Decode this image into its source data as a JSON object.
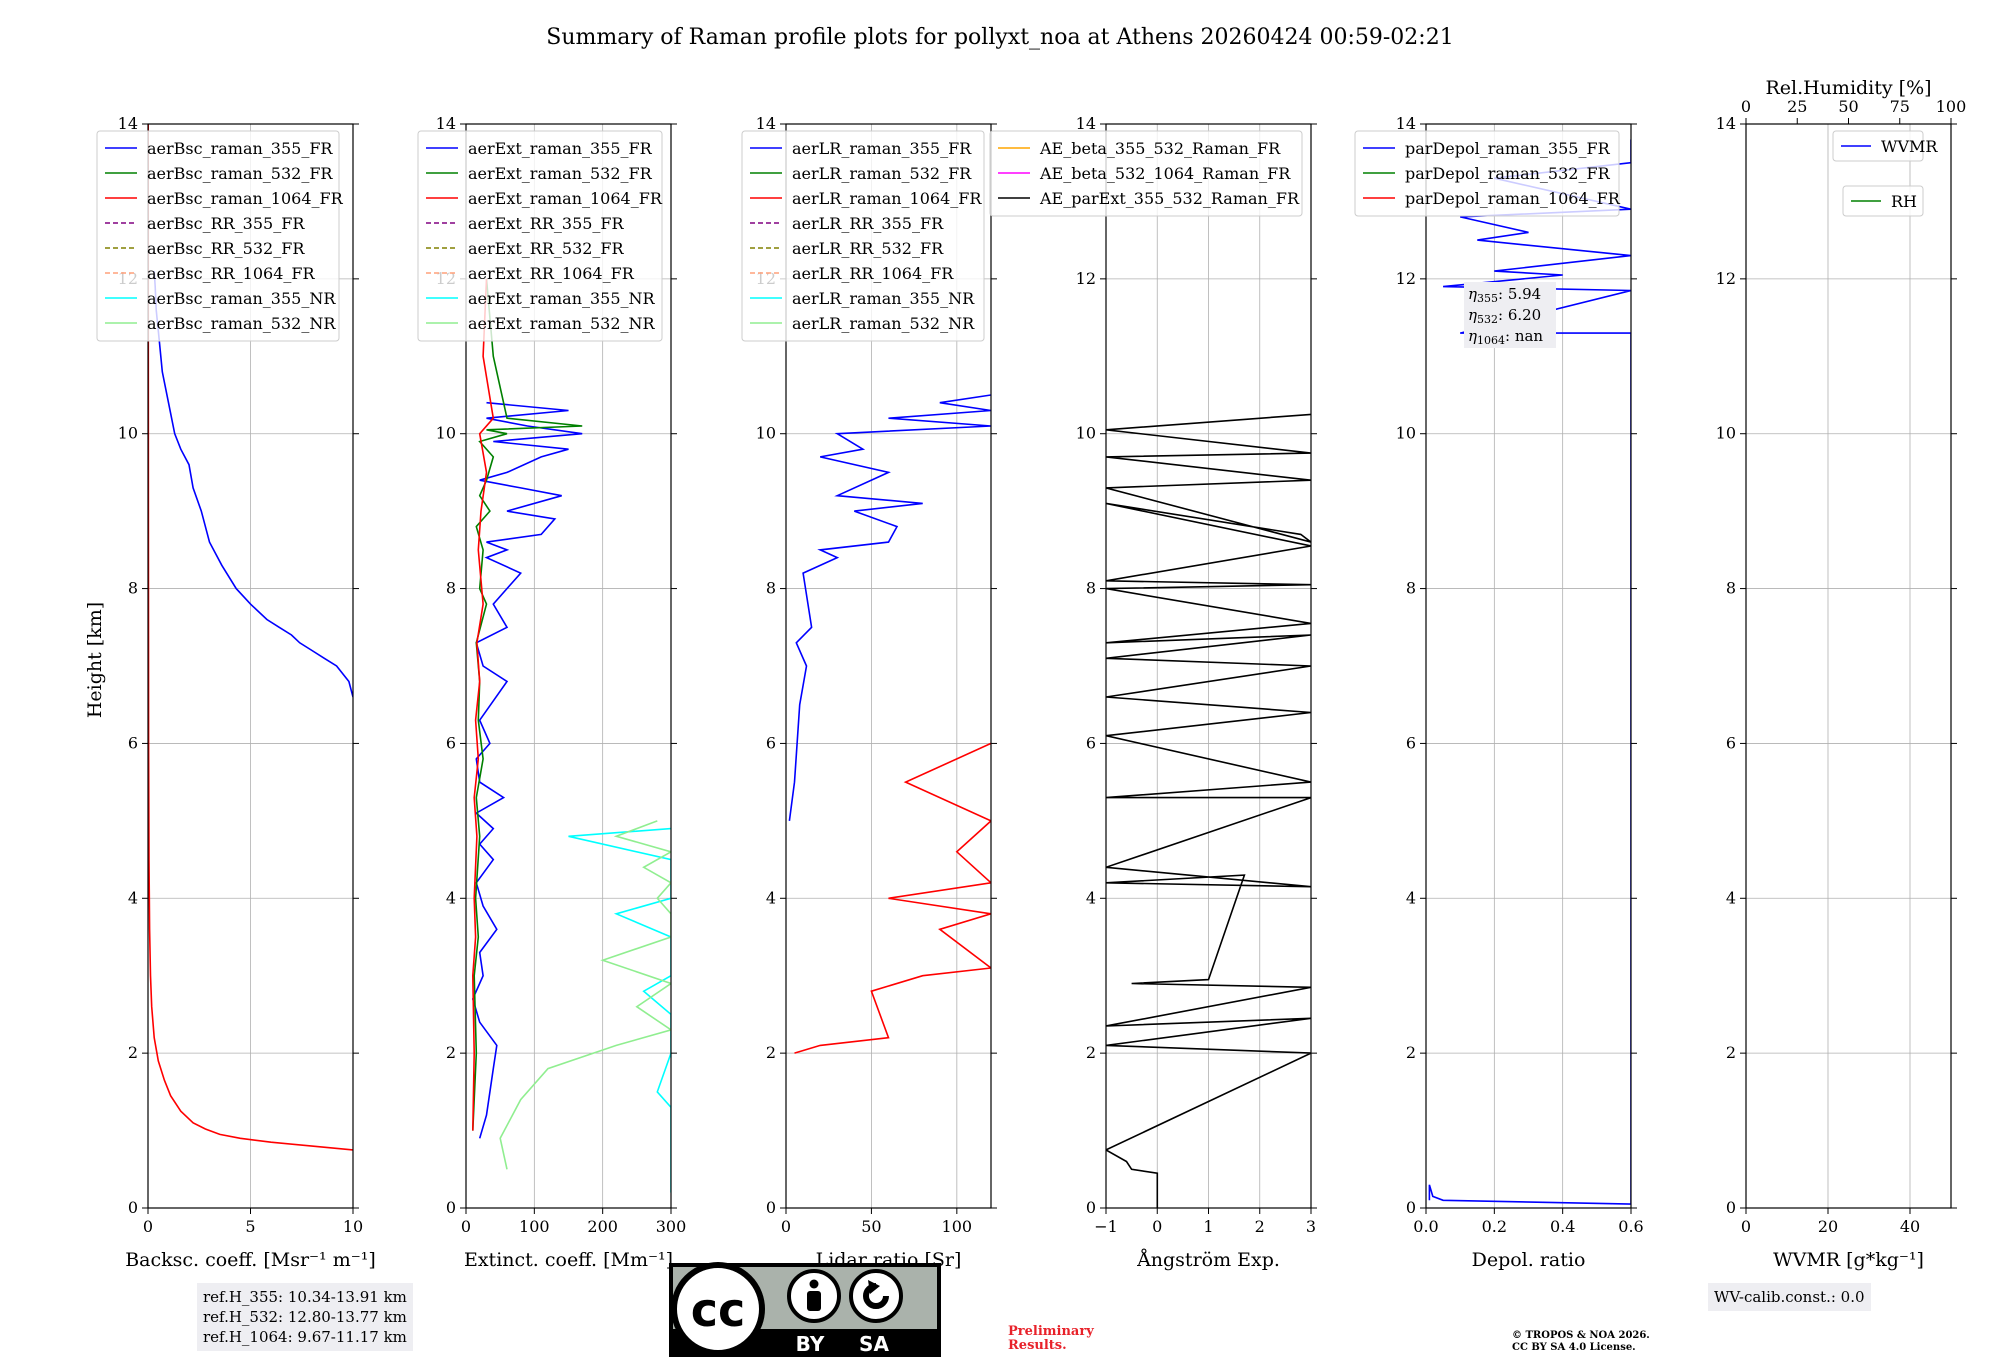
{
  "title": "Summary of Raman profile plots for pollyxt_noa at Athens 20260424 00:59-02:21",
  "ylabel": "Height [km]",
  "chart_data": [
    {
      "type": "line",
      "id": "bsc",
      "xlabel": "Backsc. coeff. [Msr⁻¹ m⁻¹]",
      "xlim": [
        0,
        10
      ],
      "ylim": [
        0,
        14
      ],
      "xticks": [
        "0",
        "5",
        "10"
      ],
      "legend": [
        "aerBsc_raman_355_FR",
        "aerBsc_raman_532_FR",
        "aerBsc_raman_1064_FR",
        "aerBsc_RR_355_FR",
        "aerBsc_RR_532_FR",
        "aerBsc_RR_1064_FR",
        "aerBsc_raman_355_NR",
        "aerBsc_raman_532_NR"
      ],
      "series": [
        {
          "name": "aerBsc_raman_355_FR",
          "x": [
            10,
            9.8,
            9.2,
            8.6,
            8.0,
            7.4,
            7.0,
            6.4,
            5.8,
            5.0,
            4.3,
            3.6,
            3.0,
            2.6,
            2.2,
            2.0,
            1.6,
            1.3,
            1.0,
            0.7,
            0.55,
            0.4,
            0.35,
            0.3
          ],
          "y": [
            6.6,
            6.8,
            7.0,
            7.1,
            7.2,
            7.3,
            7.4,
            7.5,
            7.6,
            7.8,
            8.0,
            8.3,
            8.6,
            9.0,
            9.3,
            9.6,
            9.8,
            10.0,
            10.4,
            10.8,
            11.2,
            11.6,
            11.9,
            12.1
          ]
        },
        {
          "name": "aerBsc_raman_1064_FR",
          "x": [
            10,
            8.0,
            6.0,
            4.5,
            3.5,
            2.8,
            2.2,
            1.6,
            1.1,
            0.8,
            0.5,
            0.3,
            0.18,
            0.12,
            0.08,
            0.05,
            0.03,
            0.02,
            0.01
          ],
          "y": [
            0.75,
            0.8,
            0.85,
            0.9,
            0.95,
            1.02,
            1.1,
            1.25,
            1.45,
            1.65,
            1.9,
            2.2,
            2.6,
            3.0,
            3.6,
            4.5,
            6.0,
            9.0,
            14.0
          ]
        }
      ]
    },
    {
      "type": "line",
      "id": "ext",
      "xlabel": "Extinct. coeff. [Mm⁻¹]",
      "xlim": [
        0,
        300
      ],
      "ylim": [
        0,
        14
      ],
      "xticks": [
        "0",
        "100",
        "200",
        "300"
      ],
      "legend": [
        "aerExt_raman_355_FR",
        "aerExt_raman_532_FR",
        "aerExt_raman_1064_FR",
        "aerExt_RR_355_FR",
        "aerExt_RR_532_FR",
        "aerExt_RR_1064_FR",
        "aerExt_raman_355_NR",
        "aerExt_raman_532_NR"
      ],
      "series": [
        {
          "name": "aerExt_raman_355_FR",
          "x": [
            20,
            30,
            35,
            40,
            45,
            20,
            10,
            25,
            20,
            45,
            25,
            15,
            40,
            20,
            40,
            15,
            55,
            20,
            15,
            35,
            20,
            60,
            25,
            15,
            60,
            40,
            80,
            30,
            60,
            30,
            110,
            130,
            60,
            140,
            80,
            20,
            60,
            110,
            150,
            40,
            170,
            90,
            30,
            150,
            30
          ],
          "y": [
            0.9,
            1.2,
            1.5,
            1.8,
            2.1,
            2.4,
            2.7,
            3.0,
            3.3,
            3.6,
            3.9,
            4.2,
            4.5,
            4.7,
            4.9,
            5.1,
            5.3,
            5.5,
            5.8,
            6.0,
            6.3,
            6.8,
            7.0,
            7.3,
            7.5,
            7.8,
            8.2,
            8.4,
            8.5,
            8.6,
            8.7,
            8.9,
            9.0,
            9.2,
            9.3,
            9.4,
            9.5,
            9.7,
            9.8,
            9.9,
            10.0,
            10.1,
            10.2,
            10.3,
            10.4
          ]
        },
        {
          "name": "aerExt_raman_532_FR",
          "x": [
            10,
            15,
            12,
            18,
            14,
            20,
            15,
            25,
            18,
            20,
            15,
            30,
            20,
            25,
            15,
            35,
            20,
            30,
            40,
            20,
            60,
            30,
            170,
            60,
            40,
            30
          ],
          "y": [
            1.0,
            2.0,
            3.0,
            3.5,
            4.0,
            4.8,
            5.3,
            5.8,
            6.3,
            6.8,
            7.3,
            7.8,
            8.0,
            8.5,
            8.8,
            9.0,
            9.2,
            9.4,
            9.7,
            9.9,
            10.0,
            10.05,
            10.1,
            10.2,
            11.0,
            12.0
          ]
        },
        {
          "name": "aerExt_raman_1064_FR",
          "x": [
            10,
            12,
            10,
            14,
            12,
            16,
            12,
            18,
            14,
            20,
            16,
            25,
            18,
            22,
            30,
            20,
            40,
            25,
            30
          ],
          "y": [
            1.0,
            2.0,
            3.0,
            3.5,
            4.0,
            4.8,
            5.3,
            5.8,
            6.3,
            6.8,
            7.3,
            7.8,
            8.5,
            9.0,
            9.5,
            10.0,
            10.2,
            11.0,
            12.0
          ]
        },
        {
          "name": "aerExt_raman_355_NR",
          "x": [
            300,
            300,
            280,
            300,
            300,
            260,
            300,
            300,
            220,
            300,
            300,
            150,
            300
          ],
          "y": [
            0.2,
            1.3,
            1.5,
            2.0,
            2.5,
            2.8,
            3.0,
            3.5,
            3.8,
            4.0,
            4.5,
            4.8,
            4.9
          ]
        },
        {
          "name": "aerExt_raman_532_NR",
          "x": [
            60,
            50,
            80,
            120,
            220,
            300,
            250,
            300,
            200,
            300,
            300,
            280,
            300,
            260,
            300,
            220,
            280
          ],
          "y": [
            0.5,
            0.9,
            1.4,
            1.8,
            2.1,
            2.3,
            2.6,
            2.9,
            3.2,
            3.5,
            3.8,
            4.0,
            4.2,
            4.4,
            4.6,
            4.8,
            5.0
          ]
        }
      ]
    },
    {
      "type": "line",
      "id": "lr",
      "xlabel": "Lidar ratio [Sr]",
      "xlim": [
        0,
        120
      ],
      "ylim": [
        0,
        14
      ],
      "xticks": [
        "0",
        "50",
        "100"
      ],
      "legend": [
        "aerLR_raman_355_FR",
        "aerLR_raman_532_FR",
        "aerLR_raman_1064_FR",
        "aerLR_RR_355_FR",
        "aerLR_RR_532_FR",
        "aerLR_RR_1064_FR",
        "aerLR_raman_355_NR",
        "aerLR_raman_532_NR"
      ],
      "series": [
        {
          "name": "aerLR_raman_355_FR",
          "x": [
            2,
            5,
            8,
            12,
            6,
            15,
            10,
            30,
            20,
            60,
            65,
            40,
            80,
            30,
            60,
            20,
            45,
            30,
            120,
            60,
            120,
            90,
            120
          ],
          "y": [
            5.0,
            5.5,
            6.5,
            7.0,
            7.3,
            7.5,
            8.2,
            8.4,
            8.5,
            8.6,
            8.8,
            9.0,
            9.1,
            9.2,
            9.5,
            9.7,
            9.8,
            10.0,
            10.1,
            10.2,
            10.3,
            10.4,
            10.5
          ]
        },
        {
          "name": "aerLR_raman_1064_FR",
          "x": [
            5,
            20,
            60,
            50,
            80,
            120,
            90,
            120,
            60,
            120,
            100,
            120,
            70,
            120
          ],
          "y": [
            2.0,
            2.1,
            2.2,
            2.8,
            3.0,
            3.1,
            3.6,
            3.8,
            4.0,
            4.2,
            4.6,
            5.0,
            5.5,
            6.0
          ]
        }
      ]
    },
    {
      "type": "line",
      "id": "ae",
      "xlabel": "Ångström Exp.",
      "xlim": [
        -1,
        3
      ],
      "ylim": [
        0,
        14
      ],
      "xticks": [
        "−1",
        "0",
        "1",
        "2",
        "3"
      ],
      "legend": [
        "AE_beta_355_532_Raman_FR",
        "AE_beta_532_1064_Raman_FR",
        "AE_parExt_355_532_Raman_FR"
      ],
      "series": [
        {
          "name": "AE_parExt_355_532_Raman_FR",
          "x": [
            0,
            0,
            -0.5,
            -0.6,
            -1,
            3,
            -1,
            3,
            -1,
            3,
            -0.5,
            1.0,
            1.7,
            -1,
            3,
            -1,
            3,
            -1,
            3,
            -1,
            3,
            -1,
            3,
            -1,
            3,
            -1,
            3,
            -1,
            3,
            -1,
            3,
            -1,
            2.8,
            3,
            -1,
            3,
            -1,
            3,
            -1,
            3
          ],
          "y": [
            0.0,
            0.45,
            0.5,
            0.6,
            0.75,
            2.0,
            2.1,
            2.45,
            2.35,
            2.85,
            2.9,
            2.95,
            4.3,
            4.2,
            4.15,
            4.4,
            5.3,
            5.3,
            5.5,
            6.1,
            6.4,
            6.6,
            7.0,
            7.1,
            7.4,
            7.3,
            7.55,
            8.0,
            8.05,
            8.1,
            8.55,
            9.1,
            8.7,
            8.6,
            9.3,
            9.4,
            9.7,
            9.75,
            10.05,
            10.25
          ]
        }
      ]
    },
    {
      "type": "line",
      "id": "depol",
      "xlabel": "Depol. ratio",
      "xlim": [
        0,
        0.6
      ],
      "ylim": [
        0,
        14
      ],
      "xticks": [
        "0.0",
        "0.2",
        "0.4",
        "0.6"
      ],
      "legend": [
        "parDepol_raman_355_FR",
        "parDepol_raman_532_FR",
        "parDepol_raman_1064_FR"
      ],
      "annotation": [
        {
          "label": "η",
          "sub": "355",
          "value": ": 5.94"
        },
        {
          "label": "η",
          "sub": "532",
          "value": ": 6.20"
        },
        {
          "label": "η",
          "sub": "1064",
          "value": ": nan"
        }
      ],
      "series": [
        {
          "name": "parDepol_raman_355_FR",
          "x": [
            0.01,
            0.01,
            0.02,
            0.05,
            0.6,
            0.6,
            0.1,
            0.6,
            0.05,
            0.4,
            0.2,
            0.6,
            0.15,
            0.3,
            0.1,
            0.6,
            0.2,
            0.6,
            0.6
          ],
          "y": [
            0.1,
            0.3,
            0.15,
            0.1,
            0.05,
            11.3,
            11.3,
            11.85,
            11.9,
            12.05,
            12.1,
            12.3,
            12.5,
            12.6,
            12.8,
            12.9,
            13.3,
            13.5,
            13.8
          ]
        }
      ]
    },
    {
      "type": "line",
      "id": "wv",
      "xlabel": "WVMR [g*kg⁻¹]",
      "x2label": "Rel.Humidity [%]",
      "xlim": [
        0,
        50
      ],
      "x2lim": [
        0,
        100
      ],
      "ylim": [
        0,
        14
      ],
      "xticks": [
        "0",
        "20",
        "40"
      ],
      "x2ticks": [
        "0",
        "25",
        "50",
        "75",
        "100"
      ],
      "legend": [
        "WVMR",
        "RH"
      ],
      "series": []
    }
  ],
  "yticks": [
    "0",
    "2",
    "4",
    "6",
    "8",
    "10",
    "12",
    "14"
  ],
  "footer": {
    "refh_355": "ref.H_355: 10.34-13.91 km",
    "refh_532": "ref.H_532: 12.80-13.77 km",
    "refh_1064": "ref.H_1064: 9.67-11.17 km",
    "wv_calib": "WV-calib.const.: 0.0",
    "prelim_1": "Preliminary",
    "prelim_2": "Results.",
    "copyright_1": "© TROPOS & NOA 2026.",
    "copyright_2": "CC BY SA 4.0 License.",
    "badge_by": "BY",
    "badge_sa": "SA"
  },
  "colors": {
    "blue": "#0000ff",
    "green": "#008000",
    "red": "#ff0000",
    "purple": "#800080",
    "olive": "#808000",
    "salmon": "#ffa07a",
    "cyan": "#00ffff",
    "lightgreen": "#90ee90",
    "orange": "#ffa500",
    "magenta": "#ff00ff",
    "black": "#000000"
  }
}
